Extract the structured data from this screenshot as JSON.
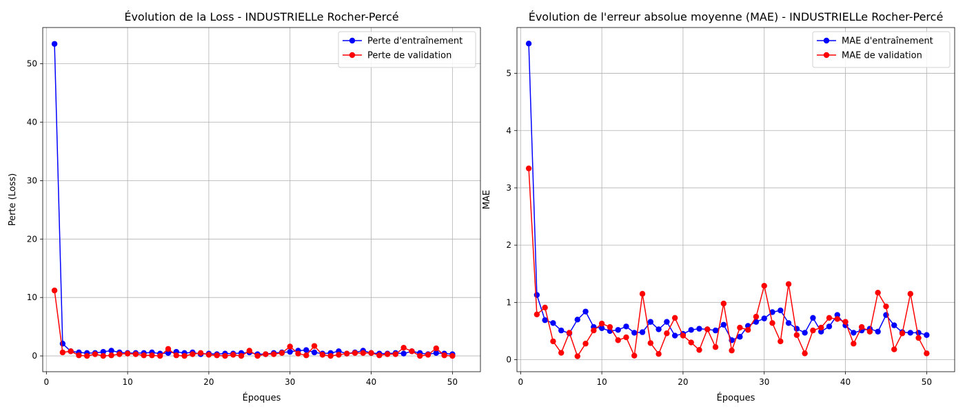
{
  "colors": {
    "train": "#0000ff",
    "val": "#ff0000",
    "grid": "#b0b0b0"
  },
  "chart_data": [
    {
      "type": "line",
      "title": "Évolution de la Loss - INDUSTRIELLe Rocher-Percé",
      "xlabel": "Époques",
      "ylabel": "Perte (Loss)",
      "xlim": [
        -0.45,
        53.45
      ],
      "ylim": [
        -2.7,
        56.2
      ],
      "xticks": [
        0,
        10,
        20,
        30,
        40,
        50
      ],
      "yticks": [
        0,
        10,
        20,
        30,
        40,
        50
      ],
      "grid": true,
      "legend_position": "top-right",
      "x": [
        1,
        2,
        3,
        4,
        5,
        6,
        7,
        8,
        9,
        10,
        11,
        12,
        13,
        14,
        15,
        16,
        17,
        18,
        19,
        20,
        21,
        22,
        23,
        24,
        25,
        26,
        27,
        28,
        29,
        30,
        31,
        32,
        33,
        34,
        35,
        36,
        37,
        38,
        39,
        40,
        41,
        42,
        43,
        44,
        45,
        46,
        47,
        48,
        49,
        50
      ],
      "series": [
        {
          "name": "Perte d'entraînement",
          "color": "#0000ff",
          "values": [
            53.4,
            2.1,
            0.8,
            0.6,
            0.5,
            0.5,
            0.7,
            0.9,
            0.6,
            0.5,
            0.5,
            0.5,
            0.6,
            0.4,
            0.5,
            0.7,
            0.5,
            0.6,
            0.3,
            0.4,
            0.3,
            0.4,
            0.4,
            0.5,
            0.6,
            0.3,
            0.3,
            0.5,
            0.6,
            0.7,
            0.9,
            1.0,
            0.6,
            0.4,
            0.5,
            0.8,
            0.4,
            0.6,
            0.9,
            0.5,
            0.4,
            0.4,
            0.5,
            0.4,
            0.8,
            0.5,
            0.3,
            0.5,
            0.4,
            0.3
          ]
        },
        {
          "name": "Perte de validation",
          "color": "#ff0000",
          "values": [
            11.2,
            0.6,
            0.8,
            0.1,
            0.0,
            0.3,
            0.0,
            0.1,
            0.3,
            0.4,
            0.3,
            0.1,
            0.1,
            0.0,
            1.2,
            0.1,
            0.0,
            0.3,
            0.5,
            0.2,
            0.1,
            0.0,
            0.2,
            0.0,
            0.9,
            0.0,
            0.3,
            0.3,
            0.5,
            1.6,
            0.4,
            0.1,
            1.7,
            0.2,
            0.0,
            0.2,
            0.4,
            0.5,
            0.5,
            0.5,
            0.1,
            0.3,
            0.3,
            1.4,
            0.8,
            0.0,
            0.2,
            1.3,
            0.1,
            0.0
          ]
        }
      ]
    },
    {
      "type": "line",
      "title": "Évolution de l'erreur absolue moyenne (MAE) - INDUSTRIELLe Rocher-Percé",
      "xlabel": "Époques",
      "ylabel": "MAE",
      "xlim": [
        -0.45,
        53.45
      ],
      "ylim": [
        -0.21,
        5.8
      ],
      "xticks": [
        0,
        10,
        20,
        30,
        40,
        50
      ],
      "yticks": [
        0,
        1,
        2,
        3,
        4,
        5
      ],
      "grid": true,
      "legend_position": "top-right",
      "x": [
        1,
        2,
        3,
        4,
        5,
        6,
        7,
        8,
        9,
        10,
        11,
        12,
        13,
        14,
        15,
        16,
        17,
        18,
        19,
        20,
        21,
        22,
        23,
        24,
        25,
        26,
        27,
        28,
        29,
        30,
        31,
        32,
        33,
        34,
        35,
        36,
        37,
        38,
        39,
        40,
        41,
        42,
        43,
        44,
        45,
        46,
        47,
        48,
        49,
        50
      ],
      "series": [
        {
          "name": "MAE d'entraînement",
          "color": "#0000ff",
          "values": [
            5.52,
            1.13,
            0.69,
            0.64,
            0.51,
            0.46,
            0.7,
            0.84,
            0.57,
            0.55,
            0.5,
            0.52,
            0.58,
            0.47,
            0.48,
            0.66,
            0.53,
            0.66,
            0.42,
            0.45,
            0.52,
            0.54,
            0.53,
            0.51,
            0.61,
            0.34,
            0.4,
            0.59,
            0.66,
            0.72,
            0.83,
            0.86,
            0.64,
            0.54,
            0.47,
            0.73,
            0.49,
            0.58,
            0.78,
            0.6,
            0.47,
            0.51,
            0.54,
            0.49,
            0.78,
            0.6,
            0.48,
            0.47,
            0.47,
            0.43
          ]
        },
        {
          "name": "MAE de validation",
          "color": "#ff0000",
          "values": [
            3.34,
            0.79,
            0.91,
            0.32,
            0.12,
            0.47,
            0.06,
            0.28,
            0.51,
            0.63,
            0.57,
            0.34,
            0.39,
            0.07,
            1.15,
            0.29,
            0.1,
            0.46,
            0.73,
            0.42,
            0.3,
            0.17,
            0.53,
            0.22,
            0.98,
            0.16,
            0.56,
            0.52,
            0.75,
            1.29,
            0.64,
            0.32,
            1.32,
            0.43,
            0.11,
            0.51,
            0.56,
            0.73,
            0.71,
            0.66,
            0.28,
            0.57,
            0.49,
            1.17,
            0.93,
            0.18,
            0.46,
            1.15,
            0.38,
            0.11
          ]
        }
      ]
    }
  ]
}
